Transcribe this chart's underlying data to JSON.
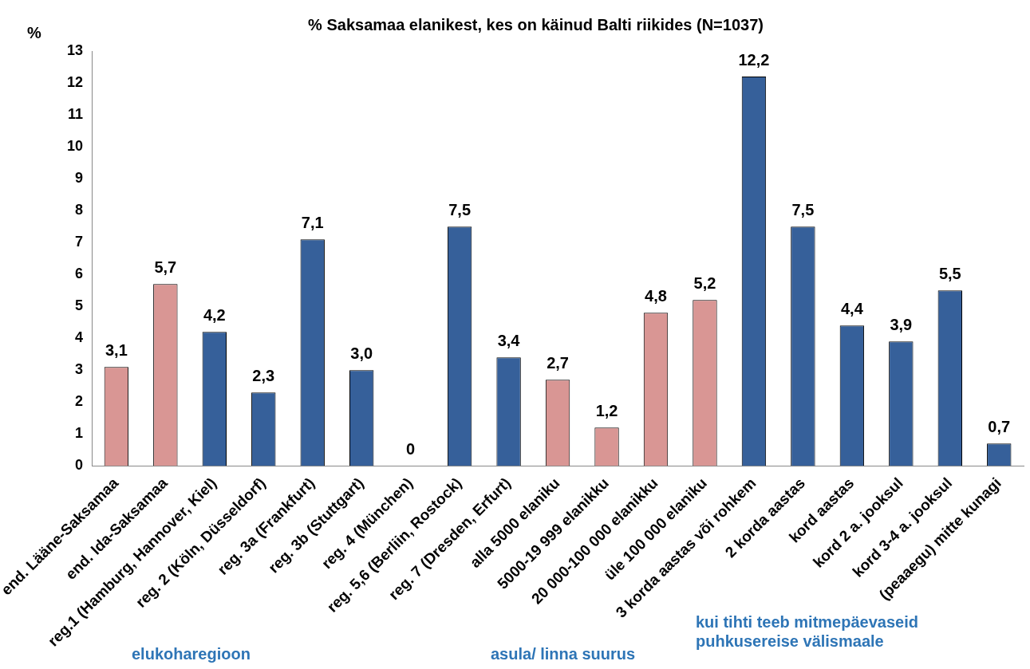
{
  "chart_data": {
    "type": "bar",
    "title": "% Saksamaa elanikest, kes on käinud Balti riikides (N=1037)",
    "ylabel": "%",
    "categories": [
      "end. Lääne-Saksamaa",
      "end. Ida-Saksamaa",
      "reg.1 (Hamburg, Hannover, Kiel)",
      "reg. 2 (Köln, Düsseldorf)",
      "reg. 3a (Frankfurt)",
      "reg. 3b (Stuttgart)",
      "reg. 4 (München)",
      "reg. 5,6 (Berliin, Rostock)",
      "reg. 7 (Dresden, Erfurt)",
      "alla 5000 elaniku",
      "5000-19 999 elanikku",
      "20 000-100 000 elanikku",
      "üle 100 000 elaniku",
      "3 korda aastas või rohkem",
      "2 korda aastas",
      "kord aastas",
      "kord 2 a. jooksul",
      "kord 3-4 a. jooksul",
      "(peaaegu) mitte kunagi"
    ],
    "values": [
      3.1,
      5.7,
      4.2,
      2.3,
      7.1,
      3.0,
      0,
      7.5,
      3.4,
      2.7,
      1.2,
      4.8,
      5.2,
      12.2,
      7.5,
      4.4,
      3.9,
      5.5,
      0.7
    ],
    "colors": [
      "#d99694",
      "#d99694",
      "#36609a",
      "#36609a",
      "#36609a",
      "#36609a",
      "#36609a",
      "#36609a",
      "#36609a",
      "#d99694",
      "#d99694",
      "#d99694",
      "#d99694",
      "#36609a",
      "#36609a",
      "#36609a",
      "#36609a",
      "#36609a",
      "#36609a"
    ],
    "value_labels": [
      "3,1",
      "5,7",
      "4,2",
      "2,3",
      "7,1",
      "3,0",
      "0",
      "7,5",
      "3,4",
      "2,7",
      "1,2",
      "4,8",
      "5,2",
      "12,2",
      "7,5",
      "4,4",
      "3,9",
      "5,5",
      "0,7"
    ],
    "ylim": [
      0,
      13
    ],
    "yticks": [
      0,
      1,
      2,
      3,
      4,
      5,
      6,
      7,
      8,
      9,
      10,
      11,
      12,
      13
    ],
    "grid": false,
    "legend": false,
    "annotations": [
      "elukoharegioon",
      "asula/ linna suurus",
      "kui tihti teeb mitmepäevaseid puhkusereise välismaale"
    ]
  }
}
